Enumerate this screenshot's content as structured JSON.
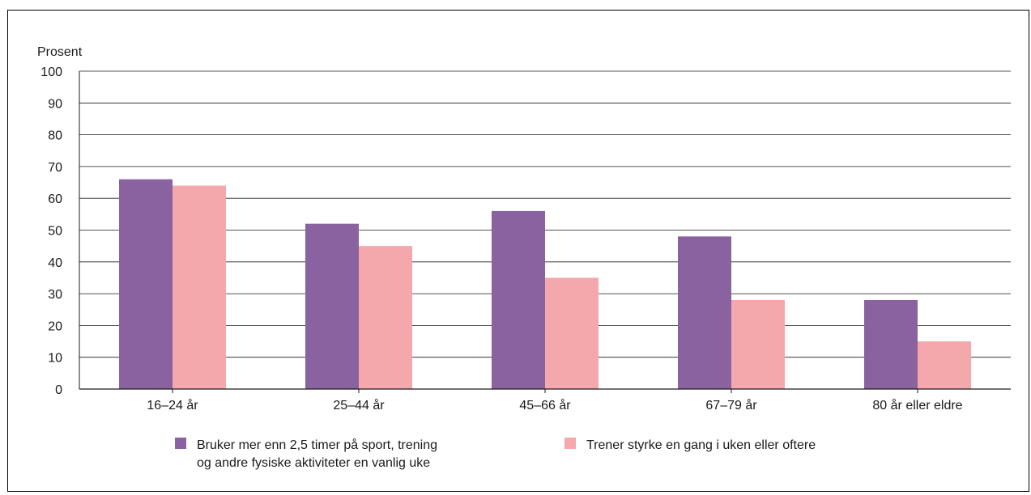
{
  "chart_data": {
    "type": "bar",
    "unit_label": "Prosent",
    "categories": [
      "16–24 år",
      "25–44 år",
      "45–66 år",
      "67–79 år",
      "80 år eller eldre"
    ],
    "ylim": [
      0,
      100
    ],
    "yticks": [
      0,
      10,
      20,
      30,
      40,
      50,
      60,
      70,
      80,
      90,
      100
    ],
    "grid": true,
    "legend_position": "bottom",
    "series": [
      {
        "name": "Bruker mer enn 2,5 timer på sport, trening og andre fysiske aktiviteter en vanlig uke",
        "name_lines": [
          "Bruker mer enn 2,5 timer på sport, trening",
          "og andre fysiske aktiviteter en vanlig uke"
        ],
        "color": "#8b62a0",
        "values": [
          66,
          52,
          56,
          48,
          28
        ]
      },
      {
        "name": "Trener styrke en gang i uken eller oftere",
        "name_lines": [
          "Trener styrke en gang i uken eller oftere"
        ],
        "color": "#f4a8ac",
        "values": [
          64,
          45,
          35,
          28,
          15
        ]
      }
    ]
  }
}
